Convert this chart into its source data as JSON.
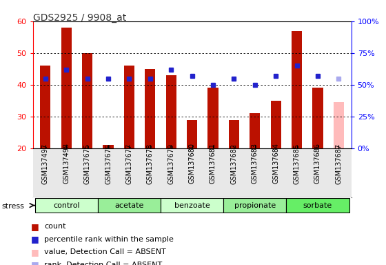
{
  "title": "GDS2925 / 9908_at",
  "samples": [
    "GSM137497",
    "GSM137498",
    "GSM137675",
    "GSM137676",
    "GSM137677",
    "GSM137678",
    "GSM137679",
    "GSM137680",
    "GSM137681",
    "GSM137682",
    "GSM137683",
    "GSM137684",
    "GSM137685",
    "GSM137686",
    "GSM137687"
  ],
  "bar_values": [
    46,
    58,
    50,
    21,
    46,
    45,
    43,
    29,
    39,
    29,
    31,
    35,
    57,
    39,
    34.5
  ],
  "absent_flags": [
    false,
    false,
    false,
    false,
    false,
    false,
    false,
    false,
    false,
    false,
    false,
    false,
    false,
    false,
    true
  ],
  "percentile_ranks": [
    55,
    62,
    55,
    55,
    55,
    55,
    62,
    57,
    50,
    55,
    50,
    57,
    65,
    57,
    55
  ],
  "groups": [
    {
      "label": "control",
      "start": 0,
      "end": 3,
      "color": "#ccffcc"
    },
    {
      "label": "acetate",
      "start": 3,
      "end": 6,
      "color": "#99ee99"
    },
    {
      "label": "benzoate",
      "start": 6,
      "end": 9,
      "color": "#ccffcc"
    },
    {
      "label": "propionate",
      "start": 9,
      "end": 12,
      "color": "#99ee99"
    },
    {
      "label": "sorbate",
      "start": 12,
      "end": 15,
      "color": "#66ee66"
    }
  ],
  "ylim": [
    20,
    60
  ],
  "y2lim": [
    0,
    100
  ],
  "yticks": [
    20,
    30,
    40,
    50,
    60
  ],
  "y2ticks": [
    0,
    25,
    50,
    75,
    100
  ],
  "y2ticklabels": [
    "0%",
    "25%",
    "50%",
    "75%",
    "100%"
  ],
  "bar_color_present": "#bb1100",
  "bar_color_absent": "#ffbbbb",
  "dot_color_present": "#2222cc",
  "dot_color_absent": "#aaaaee",
  "bar_width": 0.5,
  "bg_color": "#e8e8e8",
  "plot_bg": "#ffffff"
}
